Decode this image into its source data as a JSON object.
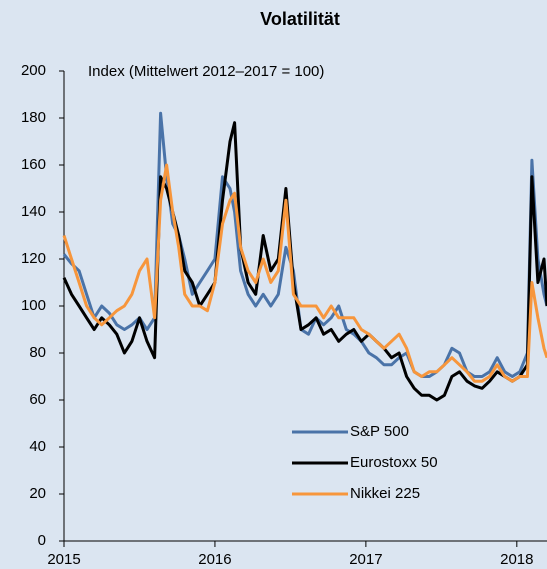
{
  "chart_data": {
    "type": "line",
    "title": "Volatilität",
    "subtitle": "Index (Mittelwert 2012–2017 = 100)",
    "x": [
      2015.0,
      2015.05,
      2015.1,
      2015.15,
      2015.2,
      2015.25,
      2015.3,
      2015.35,
      2015.4,
      2015.45,
      2015.5,
      2015.55,
      2015.6,
      2015.64,
      2015.68,
      2015.72,
      2015.76,
      2015.8,
      2015.85,
      2015.9,
      2015.95,
      2016.0,
      2016.05,
      2016.1,
      2016.13,
      2016.17,
      2016.22,
      2016.27,
      2016.32,
      2016.37,
      2016.42,
      2016.47,
      2016.52,
      2016.57,
      2016.62,
      2016.67,
      2016.72,
      2016.77,
      2016.82,
      2016.87,
      2016.92,
      2016.97,
      2017.02,
      2017.07,
      2017.12,
      2017.17,
      2017.22,
      2017.27,
      2017.32,
      2017.37,
      2017.42,
      2017.47,
      2017.52,
      2017.57,
      2017.62,
      2017.67,
      2017.72,
      2017.77,
      2017.82,
      2017.87,
      2017.92,
      2017.97,
      2018.02,
      2018.07,
      2018.1,
      2018.14,
      2018.18,
      2018.2
    ],
    "series": [
      {
        "name": "S&P 500",
        "color": "#4a73a8",
        "values": [
          122,
          118,
          115,
          105,
          95,
          100,
          97,
          92,
          90,
          92,
          95,
          90,
          95,
          182,
          155,
          135,
          130,
          120,
          105,
          110,
          115,
          120,
          155,
          150,
          140,
          115,
          105,
          100,
          105,
          100,
          105,
          125,
          115,
          90,
          88,
          95,
          92,
          95,
          100,
          90,
          88,
          85,
          80,
          78,
          75,
          75,
          78,
          80,
          72,
          70,
          70,
          72,
          75,
          82,
          80,
          72,
          70,
          70,
          72,
          78,
          72,
          70,
          72,
          80,
          162,
          120,
          105,
          100
        ]
      },
      {
        "name": "Eurostoxx 50",
        "color": "#000000",
        "values": [
          112,
          105,
          100,
          95,
          90,
          95,
          92,
          88,
          80,
          85,
          95,
          85,
          78,
          155,
          150,
          140,
          130,
          115,
          110,
          100,
          105,
          110,
          145,
          170,
          178,
          125,
          110,
          105,
          130,
          115,
          120,
          150,
          110,
          90,
          92,
          95,
          88,
          90,
          85,
          88,
          90,
          85,
          88,
          85,
          82,
          78,
          80,
          70,
          65,
          62,
          62,
          60,
          62,
          70,
          72,
          68,
          66,
          65,
          68,
          72,
          70,
          68,
          70,
          75,
          155,
          110,
          120,
          100
        ]
      },
      {
        "name": "Nikkei 225",
        "color": "#f7963c",
        "values": [
          130,
          120,
          110,
          100,
          95,
          92,
          95,
          98,
          100,
          105,
          115,
          120,
          95,
          145,
          160,
          140,
          125,
          105,
          100,
          100,
          98,
          110,
          135,
          145,
          148,
          125,
          115,
          110,
          120,
          110,
          115,
          145,
          105,
          100,
          100,
          100,
          95,
          100,
          95,
          95,
          95,
          90,
          88,
          85,
          82,
          85,
          88,
          82,
          72,
          70,
          72,
          72,
          75,
          78,
          75,
          72,
          68,
          68,
          70,
          75,
          70,
          68,
          70,
          70,
          110,
          95,
          82,
          78
        ]
      }
    ],
    "xlim": [
      2015,
      2018.2
    ],
    "xticks": [
      2015,
      2016,
      2017,
      2018
    ],
    "ylim": [
      0,
      200
    ],
    "yticks": [
      0,
      20,
      40,
      60,
      80,
      100,
      120,
      140,
      160,
      180,
      200
    ]
  }
}
